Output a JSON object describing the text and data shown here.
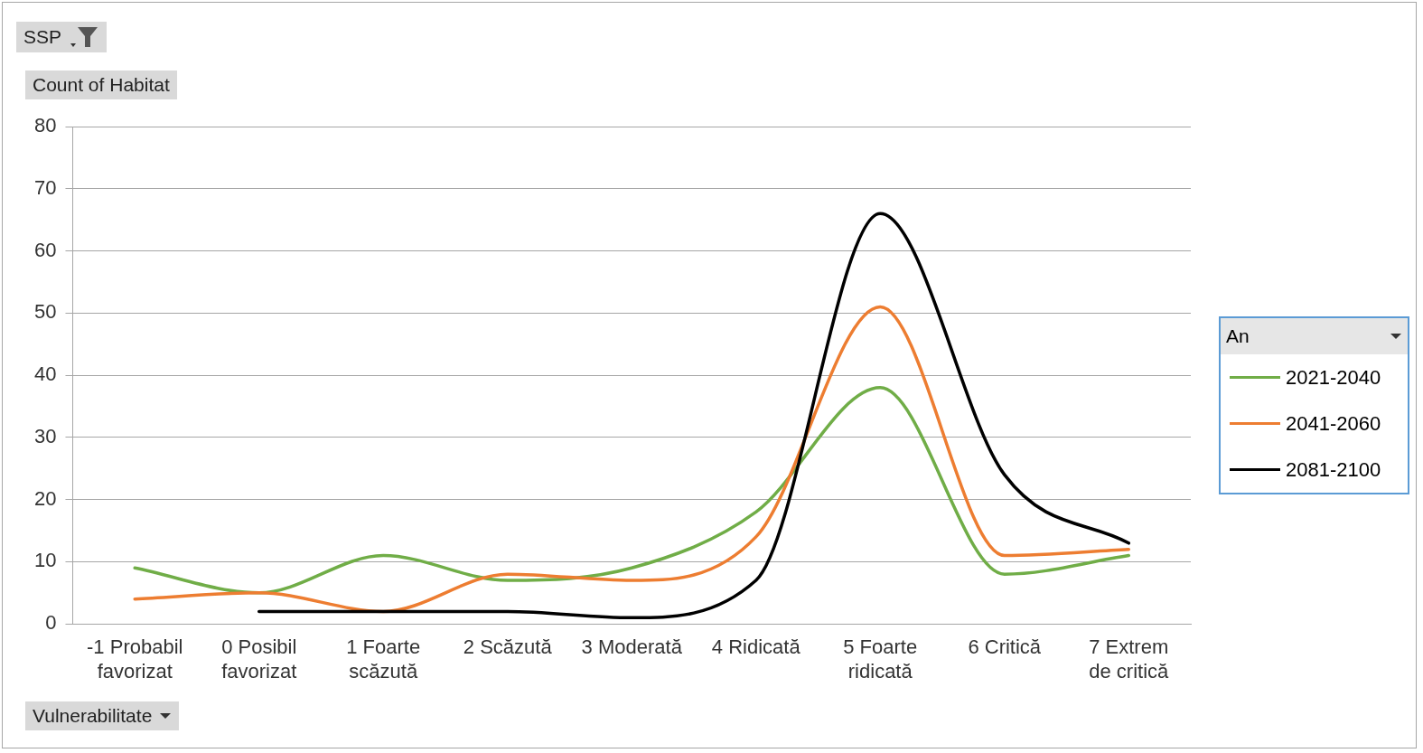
{
  "chart_data": {
    "type": "line",
    "ylabel": "Count of Habitat",
    "xlabel": "Vulnerabilitate",
    "legend_title": "An",
    "annotations": [
      "SSP"
    ],
    "categories": [
      "-1 Probabil favorizat",
      "0 Posibil favorizat",
      "1 Foarte scăzută",
      "2 Scăzută",
      "3 Moderată",
      "4 Ridicată",
      "5 Foarte ridicată",
      "6 Critică",
      "7 Extrem de critică"
    ],
    "series": [
      {
        "name": "2021-2040",
        "color": "#70ad47",
        "values": [
          9,
          5,
          11,
          7,
          9,
          18,
          38,
          8,
          11
        ]
      },
      {
        "name": "2041-2060",
        "color": "#ed7d31",
        "values": [
          4,
          5,
          2,
          8,
          7,
          14,
          51,
          11,
          12
        ]
      },
      {
        "name": "2081-2100",
        "color": "#000000",
        "values": [
          null,
          2,
          2,
          2,
          1,
          7,
          66,
          24,
          13
        ]
      }
    ],
    "ylim": [
      0,
      80
    ],
    "yticks": [
      0,
      10,
      20,
      30,
      40,
      50,
      60,
      70,
      80
    ],
    "grid": "y",
    "legend": "right",
    "marker": "none",
    "line_style": "solid"
  }
}
